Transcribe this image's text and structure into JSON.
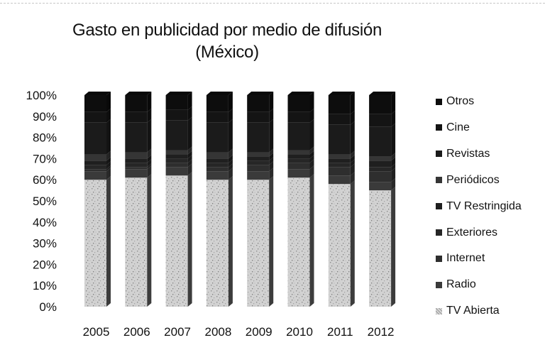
{
  "chart_data": {
    "type": "bar",
    "stacked": "percent",
    "title": "Gasto en publicidad por medio de difusión",
    "subtitle": "(México)",
    "categories": [
      "2005",
      "2006",
      "2007",
      "2008",
      "2009",
      "2010",
      "2011",
      "2012"
    ],
    "y_ticks": [
      "0%",
      "10%",
      "20%",
      "30%",
      "40%",
      "50%",
      "60%",
      "70%",
      "80%",
      "90%",
      "100%"
    ],
    "ylim": [
      0,
      100
    ],
    "grid": false,
    "legend_position": "right",
    "series": [
      {
        "name": "TV Abierta",
        "values": [
          60,
          61,
          62,
          60,
          60,
          61,
          58,
          55
        ]
      },
      {
        "name": "Radio",
        "values": [
          4,
          4,
          4,
          4,
          4,
          4,
          4,
          4
        ]
      },
      {
        "name": "Internet",
        "values": [
          1,
          1,
          2,
          2,
          3,
          3,
          4,
          5
        ]
      },
      {
        "name": "Exteriores",
        "values": [
          2,
          2,
          2,
          2,
          2,
          2,
          2,
          2
        ]
      },
      {
        "name": "TV Restringida",
        "values": [
          2,
          2,
          2,
          2,
          2,
          2,
          2,
          3
        ]
      },
      {
        "name": "Periódicos",
        "values": [
          3,
          3,
          2,
          3,
          2,
          2,
          2,
          2
        ]
      },
      {
        "name": "Revistas",
        "values": [
          15,
          14,
          14,
          14,
          14,
          13,
          14,
          14
        ]
      },
      {
        "name": "Cine",
        "values": [
          5,
          5,
          5,
          5,
          5,
          5,
          5,
          6
        ]
      },
      {
        "name": "Otros",
        "values": [
          8,
          8,
          7,
          8,
          8,
          8,
          9,
          9
        ]
      }
    ],
    "colors": {
      "TV Abierta": "#cfcfcf",
      "Radio": "#3a3a3a",
      "Internet": "#2e2e2e",
      "Exteriores": "#262626",
      "TV Restringida": "#1f1f1f",
      "Periódicos": "#353535",
      "Revistas": "#1b1b1b",
      "Cine": "#141414",
      "Otros": "#0d0d0d"
    },
    "legend_order": [
      "Otros",
      "Cine",
      "Revistas",
      "Periódicos",
      "TV Restringida",
      "Exteriores",
      "Internet",
      "Radio",
      "TV Abierta"
    ],
    "legend_labels": {
      "Otros": "Otros",
      "Cine": "Cine",
      "Revistas": "Revistas",
      "Periódicos": "Periódicos",
      "TV Restringida": "TV Restringida",
      "Exteriores": "Exteriores",
      "Internet": "Internet",
      "Radio": "Radio",
      "TV Abierta": "TV Abierta"
    }
  }
}
